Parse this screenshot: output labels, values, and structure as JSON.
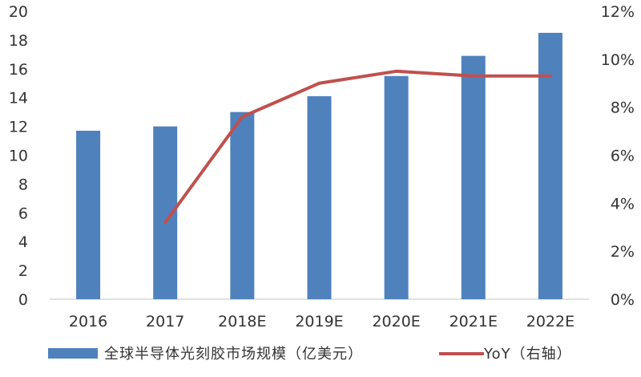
{
  "chart_data": {
    "type": "bar",
    "categories": [
      "2016",
      "2017",
      "2018E",
      "2019E",
      "2020E",
      "2021E",
      "2022E"
    ],
    "series": [
      {
        "name": "全球半导体光刻胶市场规模（亿美元）",
        "type": "bar",
        "axis": "left",
        "values": [
          11.7,
          12.0,
          13.0,
          14.1,
          15.5,
          16.9,
          18.5
        ]
      },
      {
        "name": "YoY（右轴）",
        "type": "line",
        "axis": "right",
        "values": [
          null,
          3.2,
          7.6,
          9.0,
          9.5,
          9.3,
          9.3
        ]
      }
    ],
    "ylim_left": [
      0,
      20
    ],
    "ylim_right": [
      0,
      12
    ],
    "left_ticks": [
      "0",
      "2",
      "4",
      "6",
      "8",
      "10",
      "12",
      "14",
      "16",
      "18",
      "20"
    ],
    "right_ticks": [
      "0%",
      "2%",
      "4%",
      "6%",
      "8%",
      "10%",
      "12%"
    ],
    "grid": false,
    "legend_position": "bottom",
    "colors": {
      "bar": "#4F81BD",
      "line": "#C0504D",
      "axis": "#D9D9D9"
    }
  }
}
